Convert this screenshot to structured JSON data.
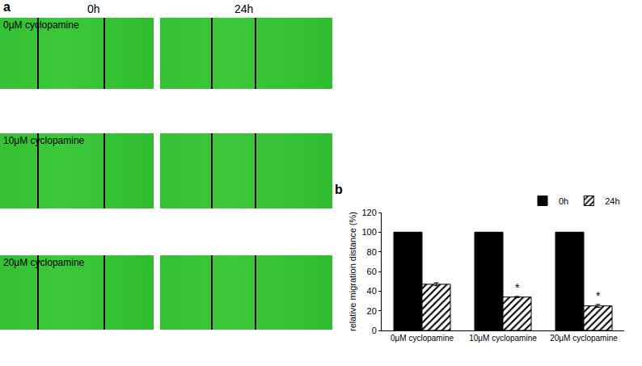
{
  "panel_a": {
    "label": "a",
    "time_points": [
      "0h",
      "24h"
    ],
    "conditions": [
      "0μM cyclopamine",
      "10μM cyclopamine",
      "20μM cyclopamine"
    ]
  },
  "chart_data": {
    "label": "b",
    "type": "bar",
    "y_label": "relative migration distance (%)",
    "categories": [
      "0μM cyclopamine",
      "10μM cyclopamine",
      "20μM cyclopamine"
    ],
    "series": [
      {
        "name": "0h",
        "color": "#000000",
        "marker": "solid",
        "values": [
          100,
          100,
          100
        ]
      },
      {
        "name": "24h",
        "color": "#000000",
        "marker": "hatched",
        "values": [
          47,
          34,
          25
        ],
        "errors": [
          1.5,
          0.6,
          1.5
        ],
        "significance": [
          null,
          "*",
          "*"
        ]
      }
    ],
    "ylim": [
      0,
      120
    ],
    "yticks": [
      0,
      20,
      40,
      60,
      80,
      100,
      120
    ],
    "grid": false,
    "legend": "upper right"
  }
}
